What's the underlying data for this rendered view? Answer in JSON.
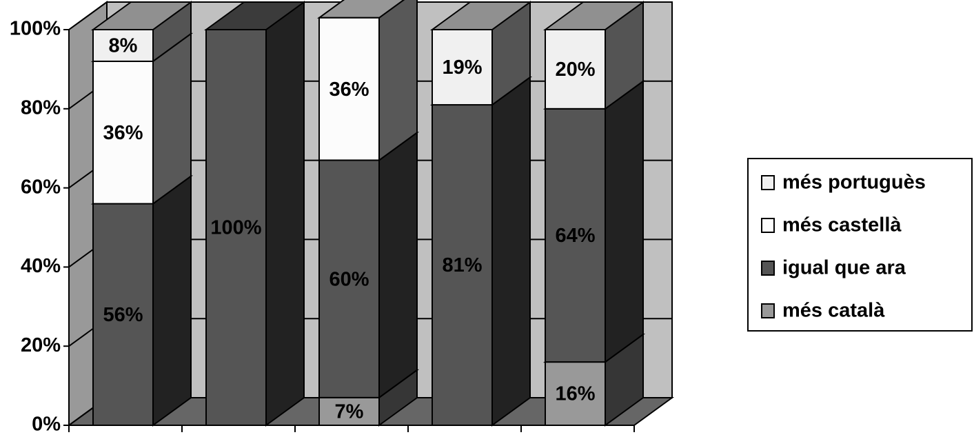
{
  "chart_data": {
    "type": "stacked-bar-3d",
    "categories": [
      null,
      null,
      null,
      null,
      null
    ],
    "series": [
      {
        "name": "més català",
        "color": "#999999",
        "values": [
          null,
          null,
          7,
          null,
          16
        ],
        "value_labels": [
          null,
          null,
          "7%",
          null,
          "16%"
        ]
      },
      {
        "name": "igual que ara",
        "color": "#555555",
        "values": [
          56,
          100,
          60,
          81,
          64
        ],
        "value_labels": [
          "56%",
          "100%",
          "60%",
          "81%",
          "64%"
        ]
      },
      {
        "name": "més castellà",
        "color": "#fcfcfc",
        "values": [
          36,
          null,
          36,
          null,
          null
        ],
        "value_labels": [
          "36%",
          null,
          "36%",
          null,
          null
        ]
      },
      {
        "name": "més portuguès",
        "color": "#f0f0f0",
        "values": [
          8,
          null,
          null,
          19,
          20
        ],
        "value_labels": [
          "8%",
          null,
          null,
          "19%",
          "20%"
        ]
      }
    ],
    "ylim": [
      0,
      100
    ],
    "yticks": [
      {
        "value": 0,
        "label": "0%"
      },
      {
        "value": 20,
        "label": "20%"
      },
      {
        "value": 40,
        "label": "40%"
      },
      {
        "value": 60,
        "label": "60%"
      },
      {
        "value": 80,
        "label": "80%"
      },
      {
        "value": 100,
        "label": "100%"
      }
    ],
    "grid": true,
    "legend": "right"
  }
}
